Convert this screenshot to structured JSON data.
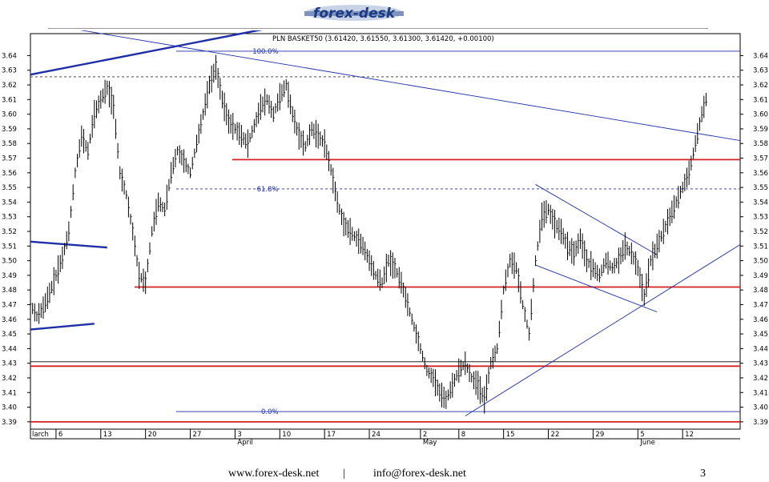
{
  "brand": {
    "logo_text": "forex-desk"
  },
  "chart_data": {
    "type": "line",
    "subtype": "ohlc",
    "title": "PLN BASKET50 (3.61420, 3.61550, 3.61300, 3.61420, +0.00100)",
    "ylim": [
      3.385,
      3.655
    ],
    "y_ticks": [
      3.39,
      3.4,
      3.41,
      3.42,
      3.43,
      3.44,
      3.45,
      3.46,
      3.47,
      3.48,
      3.49,
      3.5,
      3.51,
      3.52,
      3.53,
      3.54,
      3.55,
      3.56,
      3.57,
      3.58,
      3.59,
      3.6,
      3.61,
      3.62,
      3.63,
      3.64
    ],
    "y_tick_labels": [
      "3.39",
      "3.40",
      "3.41",
      "3.42",
      "3.43",
      "3.44",
      "3.45",
      "3.46",
      "3.47",
      "3.48",
      "3.49",
      "3.50",
      "3.51",
      "3.52",
      "3.53",
      "3.54",
      "3.55",
      "3.56",
      "3.57",
      "3.58",
      "3.59",
      "3.60",
      "3.61",
      "3.62",
      "3.63",
      "3.64"
    ],
    "x_ticks": [
      {
        "label": "larch",
        "day": 0
      },
      {
        "label": "6",
        "day": 4
      },
      {
        "label": "13",
        "day": 11
      },
      {
        "label": "20",
        "day": 18
      },
      {
        "label": "27",
        "day": 25
      },
      {
        "label": "3",
        "day": 32
      },
      {
        "label": "10",
        "day": 39
      },
      {
        "label": "17",
        "day": 46
      },
      {
        "label": "24",
        "day": 53
      },
      {
        "label": "2",
        "day": 61
      },
      {
        "label": "8",
        "day": 67
      },
      {
        "label": "15",
        "day": 74
      },
      {
        "label": "22",
        "day": 81
      },
      {
        "label": "29",
        "day": 88
      },
      {
        "label": "5",
        "day": 95
      },
      {
        "label": "12",
        "day": 102
      }
    ],
    "month_labels": [
      {
        "label": "April",
        "day": 32
      },
      {
        "label": "May",
        "day": 61
      },
      {
        "label": "June",
        "day": 95
      }
    ],
    "x_range_days": [
      0,
      111
    ],
    "price_path": [
      [
        0,
        3.47
      ],
      [
        1,
        3.462
      ],
      [
        2,
        3.468
      ],
      [
        3,
        3.478
      ],
      [
        4,
        3.49
      ],
      [
        5,
        3.502
      ],
      [
        6,
        3.52
      ],
      [
        7,
        3.56
      ],
      [
        8,
        3.585
      ],
      [
        9,
        3.575
      ],
      [
        10,
        3.6
      ],
      [
        11,
        3.61
      ],
      [
        12,
        3.618
      ],
      [
        13,
        3.605
      ],
      [
        14,
        3.56
      ],
      [
        15,
        3.545
      ],
      [
        16,
        3.52
      ],
      [
        17,
        3.49
      ],
      [
        18,
        3.485
      ],
      [
        19,
        3.52
      ],
      [
        20,
        3.54
      ],
      [
        21,
        3.535
      ],
      [
        22,
        3.56
      ],
      [
        23,
        3.575
      ],
      [
        24,
        3.568
      ],
      [
        25,
        3.56
      ],
      [
        26,
        3.58
      ],
      [
        27,
        3.6
      ],
      [
        28,
        3.62
      ],
      [
        29,
        3.632
      ],
      [
        30,
        3.61
      ],
      [
        31,
        3.595
      ],
      [
        32,
        3.59
      ],
      [
        33,
        3.585
      ],
      [
        34,
        3.58
      ],
      [
        35,
        3.592
      ],
      [
        36,
        3.605
      ],
      [
        37,
        3.61
      ],
      [
        38,
        3.6
      ],
      [
        39,
        3.612
      ],
      [
        40,
        3.62
      ],
      [
        41,
        3.6
      ],
      [
        42,
        3.585
      ],
      [
        43,
        3.578
      ],
      [
        44,
        3.59
      ],
      [
        45,
        3.585
      ],
      [
        46,
        3.58
      ],
      [
        47,
        3.562
      ],
      [
        48,
        3.54
      ],
      [
        49,
        3.525
      ],
      [
        50,
        3.52
      ],
      [
        51,
        3.515
      ],
      [
        52,
        3.51
      ],
      [
        53,
        3.5
      ],
      [
        54,
        3.49
      ],
      [
        55,
        3.485
      ],
      [
        56,
        3.5
      ],
      [
        57,
        3.495
      ],
      [
        58,
        3.485
      ],
      [
        59,
        3.47
      ],
      [
        60,
        3.455
      ],
      [
        61,
        3.44
      ],
      [
        62,
        3.425
      ],
      [
        63,
        3.42
      ],
      [
        64,
        3.41
      ],
      [
        65,
        3.405
      ],
      [
        66,
        3.415
      ],
      [
        67,
        3.425
      ],
      [
        68,
        3.43
      ],
      [
        69,
        3.42
      ],
      [
        70,
        3.415
      ],
      [
        71,
        3.405
      ],
      [
        72,
        3.43
      ],
      [
        73,
        3.44
      ],
      [
        74,
        3.48
      ],
      [
        75,
        3.5
      ],
      [
        76,
        3.495
      ],
      [
        77,
        3.47
      ],
      [
        78,
        3.45
      ],
      [
        79,
        3.5
      ],
      [
        80,
        3.53
      ],
      [
        81,
        3.535
      ],
      [
        82,
        3.525
      ],
      [
        83,
        3.52
      ],
      [
        84,
        3.51
      ],
      [
        85,
        3.505
      ],
      [
        86,
        3.515
      ],
      [
        87,
        3.5
      ],
      [
        88,
        3.495
      ],
      [
        89,
        3.49
      ],
      [
        90,
        3.5
      ],
      [
        91,
        3.495
      ],
      [
        92,
        3.5
      ],
      [
        93,
        3.51
      ],
      [
        94,
        3.505
      ],
      [
        95,
        3.495
      ],
      [
        96,
        3.475
      ],
      [
        97,
        3.5
      ],
      [
        98,
        3.51
      ],
      [
        99,
        3.52
      ],
      [
        100,
        3.53
      ],
      [
        101,
        3.54
      ],
      [
        102,
        3.55
      ],
      [
        103,
        3.56
      ],
      [
        104,
        3.58
      ],
      [
        105,
        3.6
      ],
      [
        106,
        3.615
      ]
    ],
    "annotations": [
      {
        "text": "100.0%",
        "day": 20,
        "y": 3.643
      },
      {
        "text": "61.8%",
        "day": 20,
        "y": 3.549
      },
      {
        "text": "0.0%",
        "day": 20,
        "y": 3.397
      }
    ],
    "fib_levels": [
      3.643,
      3.6255,
      3.549,
      3.397
    ],
    "horizontal_supports": [
      3.569,
      3.482,
      3.428,
      3.39
    ],
    "trendlines_thin": [
      {
        "from": [
          7,
          3.658
        ],
        "to": [
          111,
          3.582
        ]
      },
      {
        "from": [
          68,
          3.394
        ],
        "to": [
          111,
          3.511
        ]
      },
      {
        "from": [
          79,
          3.552
        ],
        "to": [
          98,
          3.504
        ]
      },
      {
        "from": [
          79,
          3.497
        ],
        "to": [
          98,
          3.465
        ]
      }
    ],
    "trendlines_thick": [
      {
        "from": [
          0,
          3.627
        ],
        "to": [
          40,
          3.661
        ]
      },
      {
        "from": [
          0,
          3.513
        ],
        "to": [
          12,
          3.509
        ]
      },
      {
        "from": [
          0,
          3.453
        ],
        "to": [
          10,
          3.457
        ]
      }
    ],
    "colors": {
      "trendline": "#1f2fa6",
      "support": "#d42020",
      "fib": "#1f2fa6",
      "bars": "#000000",
      "grid": "#000000"
    },
    "grid": false
  },
  "footer": {
    "url": "www.forex-desk.net",
    "separator": "|",
    "email": "info@forex-desk.net",
    "page": "3"
  }
}
